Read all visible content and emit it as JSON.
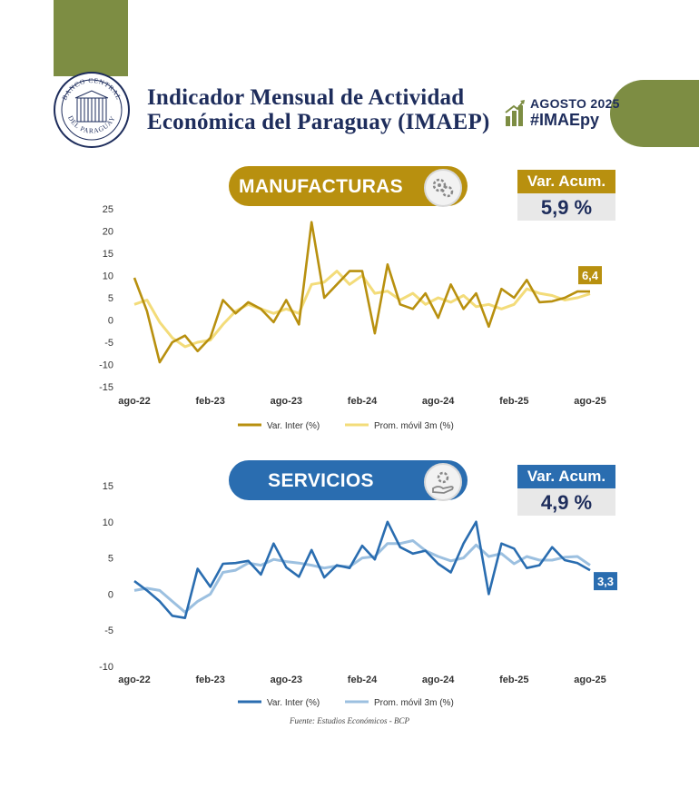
{
  "header": {
    "title_line1": "Indicador Mensual de Actividad",
    "title_line2": "Económica del Paraguay (IMAEP)",
    "period": "AGOSTO 2025",
    "hashtag": "#IMAEpy",
    "logo_text_top": "BANCO CENTRAL",
    "logo_text_bottom": "DEL PARAGUAY"
  },
  "colors": {
    "green": "#7d8d43",
    "navy": "#1e2d5c",
    "gold": "#b8900f",
    "light_gold": "#f3dc7a",
    "blue": "#2a6db0",
    "light_blue": "#9cc0e0"
  },
  "manufacturas": {
    "label": "MANUFACTURAS",
    "acum_label": "Var. Acum.",
    "acum_value": "5,9 %",
    "last_label": "6,4",
    "icon": "gears-industry-icon"
  },
  "servicios": {
    "label": "SERVICIOS",
    "acum_label": "Var. Acum.",
    "acum_value": "4,9 %",
    "last_label": "3,3",
    "icon": "hand-gear-service-icon"
  },
  "chart_data": [
    {
      "type": "line",
      "title": "MANUFACTURAS",
      "x": [
        "ago-22",
        "sep-22",
        "oct-22",
        "nov-22",
        "dic-22",
        "ene-23",
        "feb-23",
        "mar-23",
        "abr-23",
        "may-23",
        "jun-23",
        "jul-23",
        "ago-23",
        "sep-23",
        "oct-23",
        "nov-23",
        "dic-23",
        "ene-24",
        "feb-24",
        "mar-24",
        "abr-24",
        "may-24",
        "jun-24",
        "jul-24",
        "ago-24",
        "sep-24",
        "oct-24",
        "nov-24",
        "dic-24",
        "ene-25",
        "feb-25",
        "mar-25",
        "abr-25",
        "may-25",
        "jun-25",
        "jul-25",
        "ago-25"
      ],
      "x_ticks": [
        "ago-22",
        "feb-23",
        "ago-23",
        "feb-24",
        "ago-24",
        "feb-25",
        "ago-25"
      ],
      "ylim": [
        -15,
        25
      ],
      "yticks": [
        -15,
        -10,
        -5,
        0,
        5,
        10,
        15,
        20,
        25
      ],
      "series": [
        {
          "name": "Var. Inter (%)",
          "values": [
            9.5,
            2,
            -9.5,
            -5,
            -3.5,
            -7,
            -4,
            4.5,
            1.5,
            4,
            2.5,
            -0.5,
            4.5,
            -1,
            22,
            5,
            8,
            11,
            11,
            -3,
            12.5,
            3.5,
            2.5,
            6,
            0.5,
            8,
            2.5,
            6,
            -1.5,
            7,
            5,
            9,
            4,
            4.2,
            5,
            6.4,
            6.4
          ]
        },
        {
          "name": "Prom. móvil 3m (%)",
          "values": [
            3.5,
            4.5,
            -0.5,
            -4,
            -6,
            -5,
            -4.5,
            -1,
            2,
            3.5,
            2.5,
            1.5,
            2.5,
            1.5,
            8,
            8.5,
            11,
            8,
            10,
            6,
            6.5,
            4.5,
            6,
            3.5,
            5,
            4,
            5.5,
            3,
            3.5,
            2.5,
            3.5,
            7,
            6,
            5.5,
            4.5,
            5,
            5.9
          ]
        }
      ],
      "legend": "bottom"
    },
    {
      "type": "line",
      "title": "SERVICIOS",
      "x": [
        "ago-22",
        "sep-22",
        "oct-22",
        "nov-22",
        "dic-22",
        "ene-23",
        "feb-23",
        "mar-23",
        "abr-23",
        "may-23",
        "jun-23",
        "jul-23",
        "ago-23",
        "sep-23",
        "oct-23",
        "nov-23",
        "dic-23",
        "ene-24",
        "feb-24",
        "mar-24",
        "abr-24",
        "may-24",
        "jun-24",
        "jul-24",
        "ago-24",
        "sep-24",
        "oct-24",
        "nov-24",
        "dic-24",
        "ene-25",
        "feb-25",
        "mar-25",
        "abr-25",
        "may-25",
        "jun-25",
        "jul-25",
        "ago-25"
      ],
      "x_ticks": [
        "ago-22",
        "feb-23",
        "ago-23",
        "feb-24",
        "ago-24",
        "feb-25",
        "ago-25"
      ],
      "ylim": [
        -10,
        15
      ],
      "yticks": [
        -10,
        -5,
        0,
        5,
        10,
        15
      ],
      "series": [
        {
          "name": "Var. Inter (%)",
          "values": [
            1.8,
            0.5,
            -1,
            -3,
            -3.3,
            3.5,
            1,
            4.2,
            4.3,
            4.6,
            2.7,
            7,
            3.7,
            2.4,
            6.1,
            2.3,
            4,
            3.6,
            6.7,
            4.8,
            10,
            6.5,
            5.6,
            6,
            4.2,
            3,
            7,
            10,
            0,
            7,
            6.3,
            3.6,
            4,
            6.5,
            4.7,
            4.3,
            3.3
          ]
        },
        {
          "name": "Prom. móvil 3m (%)",
          "values": [
            0.5,
            0.8,
            0.5,
            -1,
            -2.5,
            -1,
            0,
            3,
            3.3,
            4.3,
            4,
            4.8,
            4.5,
            4.3,
            4,
            3.6,
            3.9,
            3.8,
            5,
            5.2,
            7,
            7,
            7.4,
            6,
            5.2,
            4.6,
            5,
            6.8,
            5.2,
            5.6,
            4.2,
            5.2,
            4.7,
            4.7,
            5.1,
            5.2,
            4
          ]
        }
      ],
      "legend": "bottom"
    }
  ],
  "source": "Fuente: Estudios Económicos - BCP"
}
